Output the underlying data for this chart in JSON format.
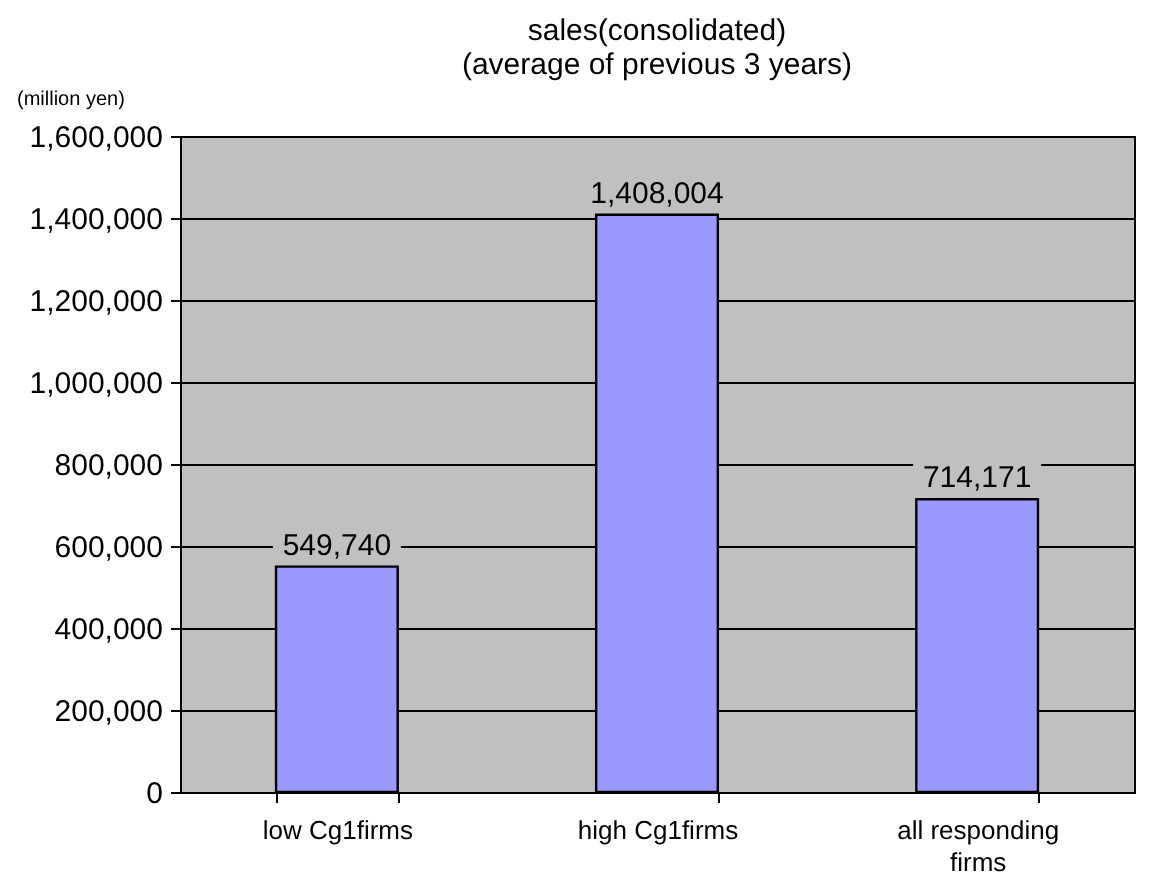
{
  "chart_data": {
    "type": "bar",
    "title": "sales(consolidated)",
    "subtitle": "(average of previous 3 years)",
    "ylabel": "(million yen)",
    "categories": [
      "low Cg1firms",
      "high Cg1firms",
      "all responding firms"
    ],
    "values": [
      549740,
      1408004,
      714171
    ],
    "color": "#9999ff",
    "value_labels": [
      "549,740",
      "1,408,004",
      "714,171"
    ],
    "ylim": [
      0,
      1600000
    ],
    "yticks": [
      0,
      {
        "value": 200000,
        "label": "200,000"
      },
      {
        "value": 400000,
        "label": "400,000"
      },
      {
        "value": 600000,
        "label": "600,000"
      },
      {
        "value": 800000,
        "label": "800,000"
      },
      {
        "value": 1000000,
        "label": "1,000,000"
      },
      {
        "value": 1200000,
        "label": "1,200,000"
      },
      {
        "value": 1400000,
        "label": "1,400,000"
      },
      {
        "value": 1600000,
        "label": "1,600,000"
      }
    ],
    "grid": "y"
  }
}
